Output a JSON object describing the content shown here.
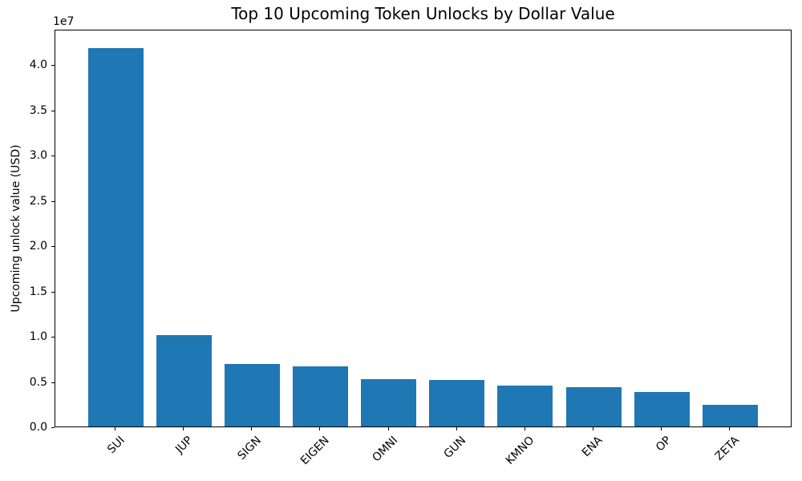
{
  "figure": {
    "background": "#ffffff",
    "axis_color": "#000000",
    "text_color": "#000000"
  },
  "chart_data": {
    "type": "bar",
    "title": "Top 10 Upcoming Token Unlocks by Dollar Value",
    "xlabel": "",
    "ylabel": "Upcoming unlock value (USD)",
    "y_offset_label": "1e7",
    "categories": [
      "SUI",
      "JUP",
      "SIGN",
      "EIGEN",
      "OMNI",
      "GUN",
      "KMNO",
      "ENA",
      "OP",
      "ZETA"
    ],
    "values": [
      41800000,
      10100000,
      6900000,
      6600000,
      5200000,
      5100000,
      4550000,
      4300000,
      3800000,
      2350000
    ],
    "ylim": [
      0,
      43900000
    ],
    "yticks": [
      0,
      5000000,
      10000000,
      15000000,
      20000000,
      25000000,
      30000000,
      35000000,
      40000000
    ],
    "ytick_labels": [
      "0.0",
      "0.5",
      "1.0",
      "1.5",
      "2.0",
      "2.5",
      "3.0",
      "3.5",
      "4.0"
    ],
    "x_tick_rotation_deg": 45,
    "bar_color": "#1f77b4",
    "grid": false,
    "legend": null
  }
}
